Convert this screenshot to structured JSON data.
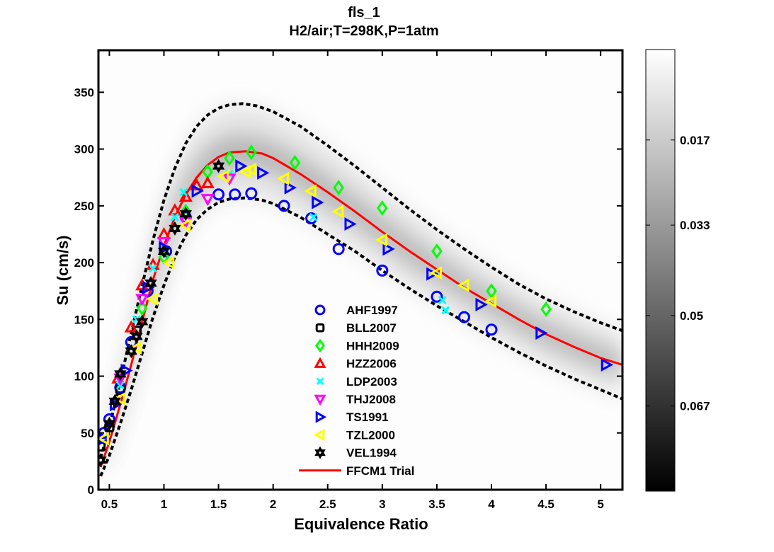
{
  "chart_data": {
    "type": "scatter",
    "title": "fls_1",
    "subtitle": "H2/air;T=298K,P=1atm",
    "xlabel": "Equivalence Ratio",
    "ylabel": "Su (cm/s)",
    "xlim": [
      0.4,
      5.2
    ],
    "ylim": [
      0,
      387
    ],
    "xticks": [
      0.5,
      1,
      1.5,
      2,
      2.5,
      3,
      3.5,
      4,
      4.5,
      5
    ],
    "xtick_labels": [
      "0.5",
      "1",
      "1.5",
      "2",
      "2.5",
      "3",
      "3.5",
      "4",
      "4.5",
      "5"
    ],
    "yticks": [
      0,
      50,
      100,
      150,
      200,
      250,
      300,
      350
    ],
    "ytick_labels": [
      "0",
      "50",
      "100",
      "150",
      "200",
      "250",
      "300",
      "350"
    ],
    "grid": false,
    "legend_position": "lower-center",
    "colorbar": {
      "tick_values": [
        0.017,
        0.033,
        0.05,
        0.067
      ],
      "tick_labels": [
        "0.017",
        "0.033",
        "0.05",
        "0.067"
      ],
      "range": [
        0,
        0.083
      ],
      "colormap": "gray-reversed"
    },
    "series": [
      {
        "name": "AHF1997",
        "marker": "circle",
        "color": "#0000ff",
        "points": [
          [
            0.45,
            50
          ],
          [
            0.5,
            62
          ],
          [
            0.6,
            90
          ],
          [
            0.7,
            130
          ],
          [
            0.85,
            175
          ],
          [
            1.02,
            210
          ],
          [
            1.2,
            240
          ],
          [
            1.5,
            260
          ],
          [
            1.65,
            260
          ],
          [
            1.8,
            261
          ],
          [
            2.1,
            250
          ],
          [
            2.35,
            239
          ],
          [
            2.6,
            212
          ],
          [
            3.0,
            193
          ],
          [
            3.5,
            170
          ],
          [
            3.75,
            152
          ],
          [
            4.0,
            141
          ]
        ]
      },
      {
        "name": "BLL2007",
        "marker": "square",
        "color": "#000000",
        "points": [
          [
            0.42,
            38
          ],
          [
            0.5,
            55
          ],
          [
            0.6,
            88
          ],
          [
            0.75,
            140
          ]
        ]
      },
      {
        "name": "HHH2009",
        "marker": "diamond",
        "color": "#00ff00",
        "points": [
          [
            0.6,
            100
          ],
          [
            0.8,
            160
          ],
          [
            1.0,
            205
          ],
          [
            1.2,
            245
          ],
          [
            1.4,
            280
          ],
          [
            1.6,
            292
          ],
          [
            1.8,
            297
          ],
          [
            2.2,
            288
          ],
          [
            2.6,
            266
          ],
          [
            3.0,
            248
          ],
          [
            3.5,
            210
          ],
          [
            4.0,
            175
          ],
          [
            4.5,
            159
          ]
        ]
      },
      {
        "name": "HZZ2006",
        "marker": "triangle-up",
        "color": "#ff0000",
        "points": [
          [
            0.58,
            98
          ],
          [
            0.7,
            143
          ],
          [
            0.8,
            180
          ],
          [
            0.9,
            198
          ],
          [
            1.0,
            225
          ],
          [
            1.1,
            246
          ],
          [
            1.2,
            258
          ],
          [
            1.3,
            268
          ],
          [
            1.4,
            270
          ]
        ]
      },
      {
        "name": "LDP2003",
        "marker": "x",
        "color": "#00ffff",
        "points": [
          [
            0.6,
            92
          ],
          [
            0.75,
            150
          ],
          [
            0.9,
            195
          ],
          [
            1.0,
            215
          ],
          [
            1.1,
            240
          ],
          [
            1.18,
            262
          ],
          [
            1.6,
            278
          ],
          [
            2.37,
            240
          ],
          [
            3.55,
            167
          ],
          [
            3.58,
            158
          ]
        ]
      },
      {
        "name": "THJ2008",
        "marker": "triangle-down",
        "color": "#ff00ff",
        "points": [
          [
            0.6,
            98
          ],
          [
            0.8,
            168
          ],
          [
            1.0,
            218
          ],
          [
            1.2,
            236
          ],
          [
            1.4,
            256
          ],
          [
            1.6,
            274
          ]
        ]
      },
      {
        "name": "TS1991",
        "marker": "triangle-right",
        "color": "#0000ff",
        "points": [
          [
            0.45,
            45
          ],
          [
            0.55,
            75
          ],
          [
            0.65,
            105
          ],
          [
            0.85,
            178
          ],
          [
            1.0,
            213
          ],
          [
            1.3,
            263
          ],
          [
            1.7,
            285
          ],
          [
            1.9,
            279
          ],
          [
            2.15,
            266
          ],
          [
            2.4,
            253
          ],
          [
            2.7,
            234
          ],
          [
            3.05,
            212
          ],
          [
            3.45,
            190
          ],
          [
            3.9,
            163
          ],
          [
            4.45,
            138
          ],
          [
            5.05,
            110
          ]
        ]
      },
      {
        "name": "TZL2000",
        "marker": "triangle-left",
        "color": "#ffff00",
        "points": [
          [
            0.45,
            45
          ],
          [
            0.6,
            80
          ],
          [
            0.75,
            125
          ],
          [
            0.9,
            168
          ],
          [
            1.05,
            200
          ],
          [
            1.2,
            233
          ],
          [
            1.55,
            276
          ],
          [
            1.75,
            280
          ],
          [
            1.8,
            282
          ],
          [
            2.1,
            274
          ],
          [
            2.35,
            263
          ],
          [
            2.6,
            245
          ],
          [
            3.0,
            220
          ],
          [
            3.5,
            191
          ],
          [
            3.75,
            180
          ],
          [
            4.0,
            166
          ]
        ]
      },
      {
        "name": "VEL1994",
        "marker": "hexagram",
        "color": "#000000",
        "points": [
          [
            0.42,
            26
          ],
          [
            0.5,
            58
          ],
          [
            0.55,
            78
          ],
          [
            0.6,
            102
          ],
          [
            0.7,
            122
          ],
          [
            0.75,
            135
          ],
          [
            0.8,
            148
          ],
          [
            0.88,
            182
          ],
          [
            1.0,
            210
          ],
          [
            1.1,
            230
          ],
          [
            1.2,
            243
          ],
          [
            1.5,
            285
          ]
        ]
      }
    ],
    "lines": [
      {
        "name": "FFCM1 Trial",
        "style": "solid",
        "color": "#ff0000",
        "points": [
          [
            0.42,
            20
          ],
          [
            0.5,
            42
          ],
          [
            0.6,
            75
          ],
          [
            0.7,
            110
          ],
          [
            0.8,
            148
          ],
          [
            0.9,
            185
          ],
          [
            1.0,
            215
          ],
          [
            1.1,
            240
          ],
          [
            1.2,
            260
          ],
          [
            1.3,
            275
          ],
          [
            1.4,
            286
          ],
          [
            1.5,
            293
          ],
          [
            1.6,
            297
          ],
          [
            1.75,
            298
          ],
          [
            1.9,
            296
          ],
          [
            2.0,
            292
          ],
          [
            2.25,
            278
          ],
          [
            2.5,
            262
          ],
          [
            2.75,
            245
          ],
          [
            3.0,
            227
          ],
          [
            3.25,
            210
          ],
          [
            3.5,
            194
          ],
          [
            3.75,
            178
          ],
          [
            4.0,
            164
          ],
          [
            4.25,
            150
          ],
          [
            4.5,
            137
          ],
          [
            4.75,
            126
          ],
          [
            5.0,
            116
          ],
          [
            5.2,
            110
          ]
        ]
      },
      {
        "name": "upper-bound",
        "style": "dashed",
        "color": "#000000",
        "points": [
          [
            0.42,
            28
          ],
          [
            0.5,
            55
          ],
          [
            0.6,
            95
          ],
          [
            0.7,
            138
          ],
          [
            0.8,
            180
          ],
          [
            0.9,
            220
          ],
          [
            1.0,
            255
          ],
          [
            1.1,
            283
          ],
          [
            1.2,
            305
          ],
          [
            1.3,
            320
          ],
          [
            1.4,
            330
          ],
          [
            1.5,
            336
          ],
          [
            1.6,
            339
          ],
          [
            1.72,
            340
          ],
          [
            1.85,
            338
          ],
          [
            2.0,
            333
          ],
          [
            2.25,
            320
          ],
          [
            2.5,
            303
          ],
          [
            2.75,
            285
          ],
          [
            3.0,
            266
          ],
          [
            3.25,
            247
          ],
          [
            3.5,
            229
          ],
          [
            3.75,
            212
          ],
          [
            4.0,
            196
          ],
          [
            4.25,
            181
          ],
          [
            4.5,
            168
          ],
          [
            4.75,
            157
          ],
          [
            5.0,
            147
          ],
          [
            5.2,
            140
          ]
        ]
      },
      {
        "name": "lower-bound",
        "style": "dashed",
        "color": "#000000",
        "points": [
          [
            0.42,
            12
          ],
          [
            0.5,
            30
          ],
          [
            0.6,
            58
          ],
          [
            0.7,
            88
          ],
          [
            0.8,
            120
          ],
          [
            0.9,
            152
          ],
          [
            1.0,
            180
          ],
          [
            1.1,
            205
          ],
          [
            1.2,
            224
          ],
          [
            1.3,
            238
          ],
          [
            1.4,
            247
          ],
          [
            1.5,
            253
          ],
          [
            1.6,
            256
          ],
          [
            1.75,
            257
          ],
          [
            1.9,
            255
          ],
          [
            2.0,
            252
          ],
          [
            2.25,
            240
          ],
          [
            2.5,
            225
          ],
          [
            2.75,
            210
          ],
          [
            3.0,
            193
          ],
          [
            3.25,
            177
          ],
          [
            3.5,
            162
          ],
          [
            3.75,
            148
          ],
          [
            4.0,
            134
          ],
          [
            4.25,
            121
          ],
          [
            4.5,
            109
          ],
          [
            4.75,
            98
          ],
          [
            5.0,
            88
          ],
          [
            5.2,
            80
          ]
        ]
      }
    ]
  }
}
